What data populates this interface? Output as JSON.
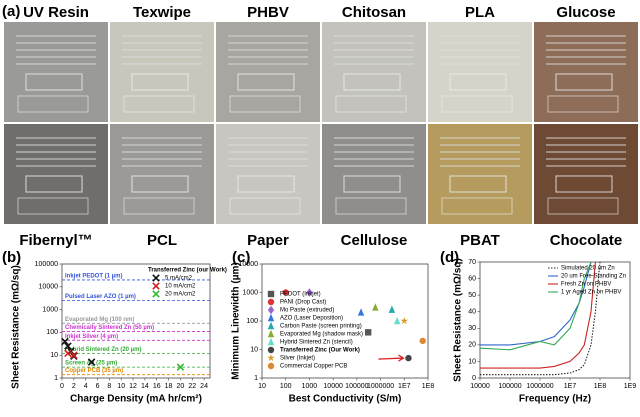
{
  "photos": {
    "label": "(a)",
    "top_row": [
      "UV Resin",
      "Texwipe",
      "PHBV",
      "Chitosan",
      "PLA",
      "Glucose"
    ],
    "bottom_row": [
      "Fibernyl™",
      "PCL",
      "Paper",
      "Cellulose",
      "PBAT",
      "Chocolate"
    ]
  },
  "chart_data": [
    {
      "type": "scatter",
      "label": "(b)",
      "xlabel": "Charge Density (mA hr/cm²)",
      "ylabel": "Sheet Resistance (mΩ/sq)",
      "xlim": [
        0,
        25
      ],
      "xticks": [
        0,
        2,
        4,
        6,
        8,
        10,
        12,
        14,
        16,
        18,
        20,
        22,
        24
      ],
      "ylim": [
        1,
        100000
      ],
      "ylog": true,
      "yticks": [
        1,
        10,
        100,
        1000,
        10000,
        100000
      ],
      "reference_lines": [
        {
          "label": "Inkjet PEDOT (1 µm)",
          "value": 20000,
          "color": "#3355dd"
        },
        {
          "label": "Pulsed Laser AZO (1 µm)",
          "value": 2500,
          "color": "#3355dd"
        },
        {
          "label": "Evaporated Mg (100 nm)",
          "value": 250,
          "color": "#999999"
        },
        {
          "label": "Chemically Sintered Zn (50 µm)",
          "value": 110,
          "color": "#cc33cc"
        },
        {
          "label": "Inkjet Silver (4 µm)",
          "value": 45,
          "color": "#cc33cc"
        },
        {
          "label": "Hybrid Sintered Zn (20 µm)",
          "value": 12,
          "color": "#33aa33"
        },
        {
          "label": "Screen Ag (25 µm)",
          "value": 3,
          "color": "#33aa33"
        },
        {
          "label": "Copper PCB (35 µm)",
          "value": 1.4,
          "color": "#dd8800"
        }
      ],
      "legend": "upper right",
      "legend_title": "Transferred Zinc (our Work)",
      "series": [
        {
          "name": "5 mA/cm2",
          "color": "#111111",
          "marker": "x",
          "x": [
            0.5,
            1,
            1.5,
            2,
            5
          ],
          "values": [
            40,
            25,
            15,
            9,
            5
          ]
        },
        {
          "name": "10 mA/cm2",
          "color": "#cc2222",
          "marker": "x",
          "x": [
            1,
            2
          ],
          "values": [
            12,
            10
          ]
        },
        {
          "name": "20 mA/cm2",
          "color": "#33bb33",
          "marker": "x",
          "x": [
            20
          ],
          "values": [
            3
          ]
        }
      ]
    },
    {
      "type": "scatter",
      "label": "(c)",
      "xlabel": "Best Conductivity (S/m)",
      "ylabel": "Minimum Linewidth (µm)",
      "xlim": [
        10,
        100000000
      ],
      "xlog": true,
      "xticks": [
        10,
        100,
        1000,
        10000,
        100000,
        1000000,
        {
          "value": 10000000,
          "label": "1E7"
        },
        {
          "value": 100000000,
          "label": "1E8"
        }
      ],
      "ylim": [
        1,
        10000
      ],
      "ylog": true,
      "yticks": [
        1,
        10,
        100,
        1000,
        10000
      ],
      "legend": "lower left",
      "series": [
        {
          "name": "PEDOT (Inkjet)",
          "color": "#555555",
          "marker": "square",
          "x": [
            300000
          ],
          "values": [
            40
          ]
        },
        {
          "name": "PANI (Drop Cast)",
          "color": "#dd3333",
          "marker": "circle",
          "x": [
            100
          ],
          "values": [
            1000
          ]
        },
        {
          "name": "Mo Paste (extruded)",
          "color": "#9966cc",
          "marker": "diamond",
          "x": [
            1000
          ],
          "values": [
            1000
          ]
        },
        {
          "name": "AZO (Laser Deposition)",
          "color": "#3377dd",
          "marker": "triangle",
          "x": [
            150000
          ],
          "values": [
            200
          ]
        },
        {
          "name": "Carbon Paste (screen printing)",
          "color": "#22aaaa",
          "marker": "triangle",
          "x": [
            3000000
          ],
          "values": [
            250
          ]
        },
        {
          "name": "Evaporated Mg (shadow mask)",
          "color": "#88aa33",
          "marker": "triangle",
          "x": [
            600000
          ],
          "values": [
            300
          ]
        },
        {
          "name": "Hybrid Sintered Zn (stencil)",
          "color": "#66ddcc",
          "marker": "triangle",
          "x": [
            5000000
          ],
          "values": [
            100
          ]
        },
        {
          "name": "Transferred Zinc (Our Work)",
          "color": "#444444",
          "marker": "circle",
          "x": [
            15000000
          ],
          "values": [
            5
          ]
        },
        {
          "name": "Silver (Inkjet)",
          "color": "#dd9922",
          "marker": "star",
          "x": [
            10000000
          ],
          "values": [
            100
          ]
        },
        {
          "name": "Commercial Copper PCB",
          "color": "#dd8833",
          "marker": "circle",
          "x": [
            60000000
          ],
          "values": [
            20
          ]
        }
      ]
    },
    {
      "type": "line",
      "label": "(d)",
      "xlabel": "Frequency (Hz)",
      "ylabel": "Sheet Resistance (mΩ/sq)",
      "xlim": [
        10000,
        1000000000
      ],
      "xlog": true,
      "xticks": [
        10000,
        100000,
        1000000,
        {
          "value": 10000000,
          "label": "1E7"
        },
        {
          "value": 100000000,
          "label": "1E8"
        },
        {
          "value": 1000000000,
          "label": "1E9"
        }
      ],
      "ylim": [
        0,
        70
      ],
      "yticks": [
        0,
        10,
        20,
        30,
        40,
        50,
        60,
        70
      ],
      "legend": "upper right",
      "x": [
        10000,
        100000,
        1000000,
        3000000,
        10000000,
        20000000,
        30000000,
        50000000,
        70000000,
        100000000
      ],
      "series": [
        {
          "name": "Simulated 20 um Zn",
          "color": "#222222",
          "style": "dotted",
          "values": [
            2,
            2,
            2,
            2,
            3,
            5,
            8,
            20,
            40,
            70
          ]
        },
        {
          "name": "20 um Free-Standing Zn",
          "color": "#3366cc",
          "style": "solid",
          "values": [
            20,
            20,
            22,
            25,
            35,
            45,
            55,
            70,
            null,
            null
          ]
        },
        {
          "name": "Fresh Zn on PHBV",
          "color": "#cc2222",
          "style": "solid",
          "values": [
            6,
            6,
            6,
            7,
            10,
            15,
            20,
            40,
            70,
            null
          ]
        },
        {
          "name": "1 yr Aged Zn on PHBV",
          "color": "#33aa55",
          "style": "solid",
          "values": [
            18,
            17,
            22,
            20,
            30,
            45,
            60,
            70,
            null,
            null
          ]
        }
      ]
    }
  ]
}
